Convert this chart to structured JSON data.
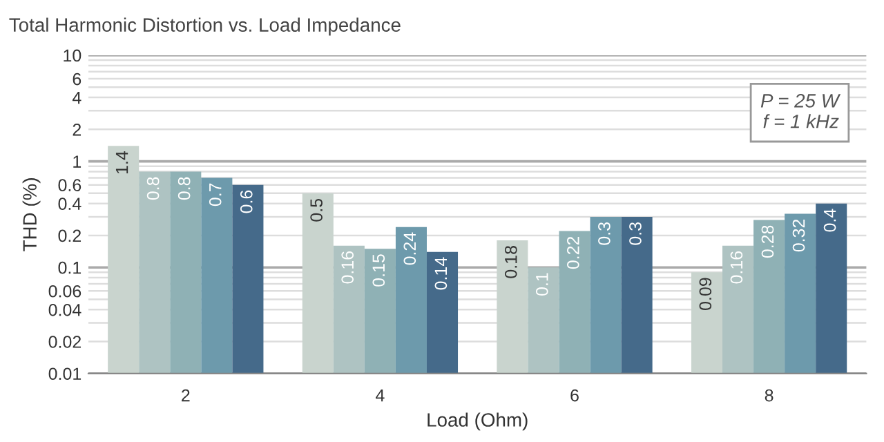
{
  "chart_data": {
    "type": "bar",
    "title": "Total Harmonic Distortion vs. Load Impedance",
    "xlabel": "Load (Ohm)",
    "ylabel": "THD (%)",
    "categories": [
      "2",
      "4",
      "6",
      "8"
    ],
    "series": [
      {
        "color": "#c9d4ce",
        "values": [
          1.4,
          0.5,
          0.18,
          0.09
        ]
      },
      {
        "color": "#aec3c2",
        "values": [
          0.8,
          0.16,
          0.1,
          0.16
        ]
      },
      {
        "color": "#8fb1b5",
        "values": [
          0.8,
          0.15,
          0.22,
          0.28
        ]
      },
      {
        "color": "#6d9aac",
        "values": [
          0.7,
          0.24,
          0.3,
          0.32
        ]
      },
      {
        "color": "#456a8a",
        "values": [
          0.6,
          0.14,
          0.3,
          0.4
        ]
      }
    ],
    "log": true,
    "ylim": [
      0.01,
      10
    ],
    "yticks": [
      0.01,
      0.02,
      {
        "value": 0.03,
        "label": null
      },
      0.04,
      {
        "value": 0.05,
        "label": null
      },
      0.06,
      {
        "value": 0.07,
        "label": null
      },
      {
        "value": 0.08,
        "label": null
      },
      {
        "value": 0.09,
        "label": null
      },
      0.1,
      0.2,
      {
        "value": 0.3,
        "label": null
      },
      0.4,
      {
        "value": 0.5,
        "label": null
      },
      0.6,
      {
        "value": 0.7,
        "label": null
      },
      {
        "value": 0.8,
        "label": null
      },
      {
        "value": 0.9,
        "label": null
      },
      1,
      2,
      {
        "value": 3,
        "label": null
      },
      4,
      {
        "value": 5,
        "label": null
      },
      6,
      {
        "value": 7,
        "label": null
      },
      {
        "value": 8,
        "label": null
      },
      {
        "value": 9,
        "label": null
      },
      10
    ],
    "grid": "y",
    "data_labels": true,
    "annotations": [
      "P = 25 W\nf = 1 kHz"
    ]
  }
}
